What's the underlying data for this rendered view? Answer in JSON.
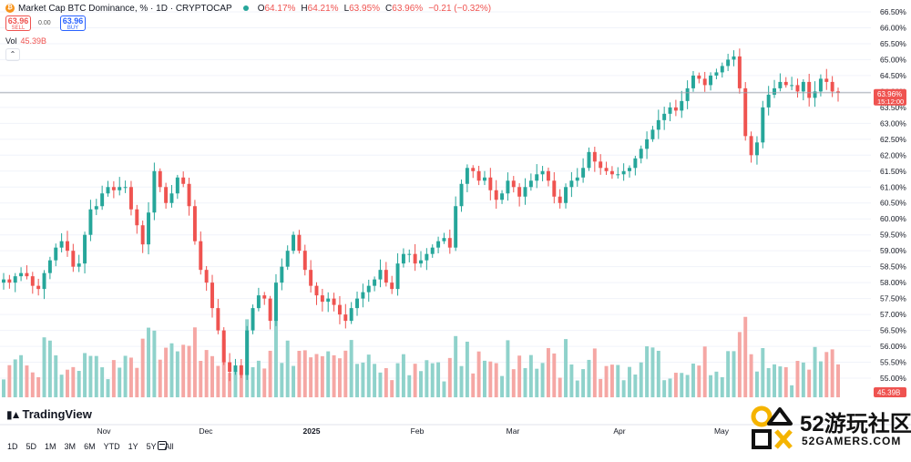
{
  "header": {
    "coin_icon": "bitcoin-icon",
    "title": "Market Cap BTC Dominance, % · 1D · CRYPTOCAP",
    "o_label": "O",
    "o_value": "64.17%",
    "h_label": "H",
    "h_value": "64.21%",
    "l_label": "L",
    "l_value": "63.95%",
    "c_label": "C",
    "c_value": "63.96%",
    "change": "−0.21 (−0.32%)"
  },
  "trade": {
    "sell_price": "63.96",
    "sell_label": "SELL",
    "spread": "0.00",
    "buy_price": "63.96",
    "buy_label": "BUY"
  },
  "volume": {
    "label": "Vol",
    "value": "45.39B",
    "scale_badge": "45.39B"
  },
  "price_badge": {
    "value": "63.96%",
    "countdown": "15:12:00"
  },
  "logo": "TradingView",
  "range_buttons": [
    "1D",
    "5D",
    "1M",
    "3M",
    "6M",
    "YTD",
    "1Y",
    "5Y",
    "All"
  ],
  "watermark": {
    "title": "52游玩社区",
    "subtitle": "52GAMERS.COM"
  },
  "colors": {
    "up": "#26a69a",
    "down": "#ef5350",
    "vol_up": "#8fd2cb",
    "vol_down": "#f5a7a4",
    "grid": "#f0f3fa"
  },
  "chart_data": {
    "type": "candlestick",
    "title": "Market Cap BTC Dominance, % · 1D · CRYPTOCAP",
    "ylabel": "%",
    "ylim": [
      54.4,
      66.7
    ],
    "y_ticks": [
      55.0,
      55.5,
      56.0,
      56.5,
      57.0,
      57.5,
      58.0,
      58.5,
      59.0,
      59.5,
      60.0,
      60.5,
      61.0,
      61.5,
      62.0,
      62.5,
      63.0,
      63.5,
      64.0,
      64.5,
      65.0,
      65.5,
      66.0,
      66.5
    ],
    "x_labels": [
      "Nov",
      "Dec",
      "2025",
      "Feb",
      "Mar",
      "Apr",
      "May"
    ],
    "last_close": 63.96,
    "close_series": [
      58.1,
      58.0,
      58.2,
      58.3,
      58.2,
      57.9,
      57.8,
      58.3,
      58.7,
      59.1,
      59.3,
      59.0,
      58.5,
      58.6,
      59.5,
      60.3,
      60.4,
      60.8,
      61.0,
      60.9,
      61.0,
      61.0,
      60.3,
      59.8,
      59.2,
      60.2,
      61.5,
      61.0,
      60.5,
      60.8,
      61.3,
      61.1,
      60.4,
      59.3,
      58.4,
      58.0,
      57.2,
      56.5,
      55.5,
      55.2,
      55.4,
      55.1,
      56.5,
      57.2,
      57.6,
      57.5,
      56.8,
      58.0,
      58.5,
      59.0,
      59.5,
      59.0,
      58.4,
      57.9,
      57.6,
      57.4,
      57.5,
      57.3,
      57.0,
      56.8,
      57.2,
      57.5,
      57.7,
      57.9,
      58.1,
      58.4,
      58.0,
      57.8,
      58.6,
      58.9,
      58.9,
      58.6,
      58.7,
      58.9,
      59.1,
      59.3,
      59.4,
      59.1,
      60.4,
      61.1,
      61.6,
      61.5,
      61.2,
      61.3,
      60.9,
      60.6,
      60.8,
      61.2,
      61.0,
      60.7,
      61.0,
      61.2,
      61.4,
      61.5,
      61.2,
      60.7,
      60.5,
      61.0,
      61.2,
      61.3,
      61.6,
      62.1,
      61.8,
      61.6,
      61.5,
      61.4,
      61.4,
      61.5,
      61.6,
      61.9,
      62.2,
      62.5,
      62.8,
      63.1,
      63.3,
      63.5,
      63.4,
      63.7,
      64.1,
      64.5,
      64.4,
      64.2,
      64.5,
      64.6,
      64.8,
      65.0,
      65.1,
      64.1,
      62.6,
      62.0,
      62.4,
      63.5,
      63.9,
      64.1,
      64.3,
      64.2,
      64.2,
      64.0,
      64.3,
      63.8,
      64.0,
      64.4,
      64.3,
      64.0,
      63.96
    ],
    "volume_unit": "B",
    "volume_last": 45.39
  }
}
